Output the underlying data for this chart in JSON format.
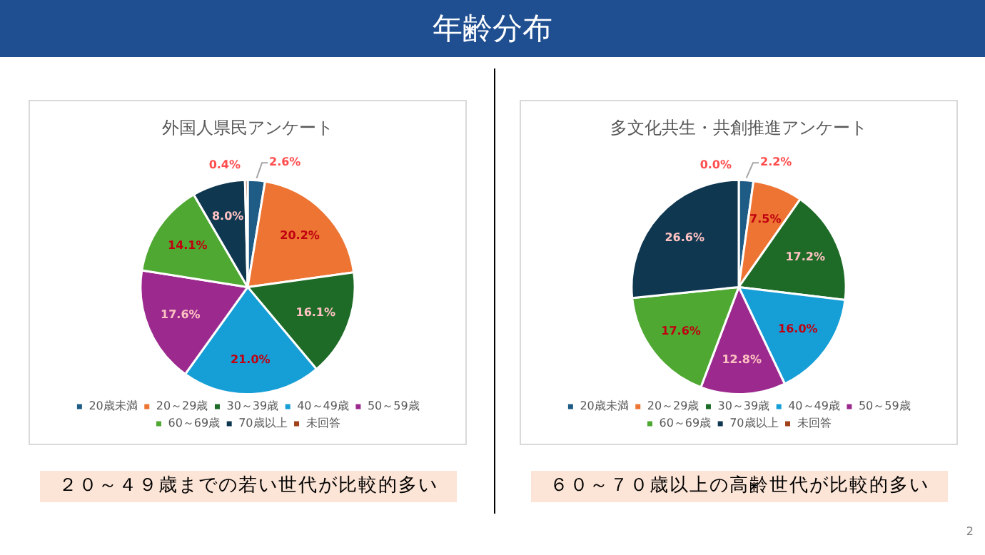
{
  "chart_data": [
    {
      "type": "pie",
      "title": "外国人県民アンケート",
      "categories": [
        "20歳未満",
        "20～29歳",
        "30～39歳",
        "40～49歳",
        "50～59歳",
        "60～69歳",
        "70歳以上",
        "未回答"
      ],
      "values": [
        2.6,
        20.2,
        16.1,
        21.0,
        17.6,
        14.1,
        8.0,
        0.4
      ],
      "value_labels": [
        "2.6%",
        "20.2%",
        "16.1%",
        "21.0%",
        "17.6%",
        "14.1%",
        "8.0%",
        "0.4%"
      ],
      "colors": [
        "#1f5c85",
        "#ed7432",
        "#1d6b26",
        "#169ed6",
        "#9c2a8e",
        "#4fa832",
        "#0f3750",
        "#a0421a"
      ],
      "legend": "bottom",
      "annotations": [
        "年齢分布",
        "２０～４９歳までの若い世代が比較的多い"
      ]
    },
    {
      "type": "pie",
      "title": "多文化共生・共創推進アンケート",
      "categories": [
        "20歳未満",
        "20～29歳",
        "30～39歳",
        "40～49歳",
        "50～59歳",
        "60～69歳",
        "70歳以上",
        "未回答"
      ],
      "values": [
        2.2,
        7.5,
        17.2,
        16.0,
        12.8,
        17.6,
        26.6,
        0.0
      ],
      "value_labels": [
        "2.2%",
        "7.5%",
        "17.2%",
        "16.0%",
        "12.8%",
        "17.6%",
        "26.6%",
        "0.0%"
      ],
      "colors": [
        "#1f5c85",
        "#ed7432",
        "#1d6b26",
        "#169ed6",
        "#9c2a8e",
        "#4fa832",
        "#0f3750",
        "#a0421a"
      ],
      "legend": "bottom",
      "annotations": [
        "６０～７０歳以上の高齢世代が比較的多い",
        "2"
      ]
    }
  ]
}
